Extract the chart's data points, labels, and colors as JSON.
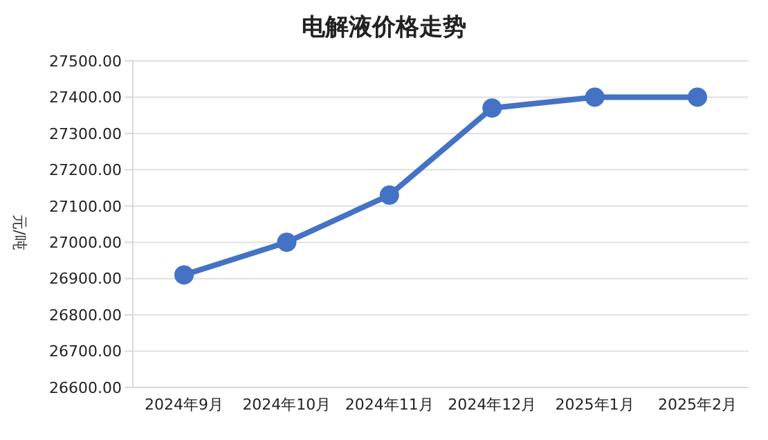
{
  "chart_data": {
    "type": "line",
    "title": "电解液价格走势",
    "ylabel": "元/吨",
    "categories": [
      "2024年9月",
      "2024年10月",
      "2024年11月",
      "2024年12月",
      "2025年1月",
      "2025年2月"
    ],
    "series": [
      {
        "color": "#4472c4",
        "values": [
          26910,
          27000,
          27130,
          27370,
          27400,
          27400
        ]
      }
    ],
    "ylim": [
      26600,
      27500
    ],
    "yticks": [
      {
        "value": 26600,
        "label": "26600.00"
      },
      {
        "value": 26700,
        "label": "26700.00"
      },
      {
        "value": 26800,
        "label": "26800.00"
      },
      {
        "value": 26900,
        "label": "26900.00"
      },
      {
        "value": 27000,
        "label": "27000.00"
      },
      {
        "value": 27100,
        "label": "27100.00"
      },
      {
        "value": 27200,
        "label": "27200.00"
      },
      {
        "value": 27300,
        "label": "27300.00"
      },
      {
        "value": 27400,
        "label": "27400.00"
      },
      {
        "value": 27500,
        "label": "27500.00"
      }
    ],
    "grid": "y",
    "legend": false,
    "marker": "circle",
    "line_style": "solid"
  }
}
